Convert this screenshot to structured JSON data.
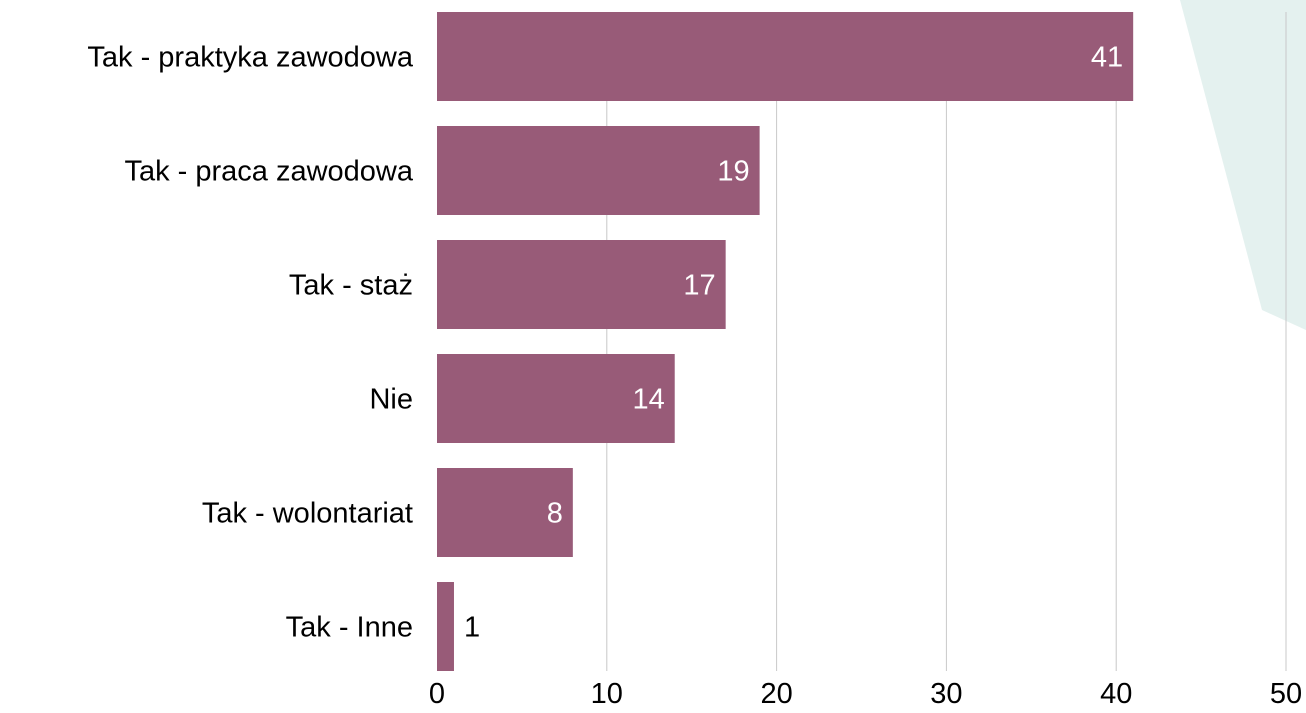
{
  "chart_data": {
    "type": "bar",
    "orientation": "horizontal",
    "categories": [
      "Tak - praktyka zawodowa",
      "Tak - praca zawodowa",
      "Tak - staż",
      "Nie",
      "Tak - wolontariat",
      "Tak - Inne"
    ],
    "values": [
      41,
      19,
      17,
      14,
      8,
      1
    ],
    "xlim": [
      0,
      50
    ],
    "x_ticks": [
      0,
      10,
      20,
      30,
      40,
      50
    ],
    "grid": true,
    "title": "",
    "xlabel": "",
    "ylabel": ""
  },
  "colors": {
    "bar": "#985b78",
    "label_inside": "#ffffff",
    "label_outside": "#000000",
    "gridline": "#c8c8c8",
    "background_shape": "#e4f1ef"
  }
}
